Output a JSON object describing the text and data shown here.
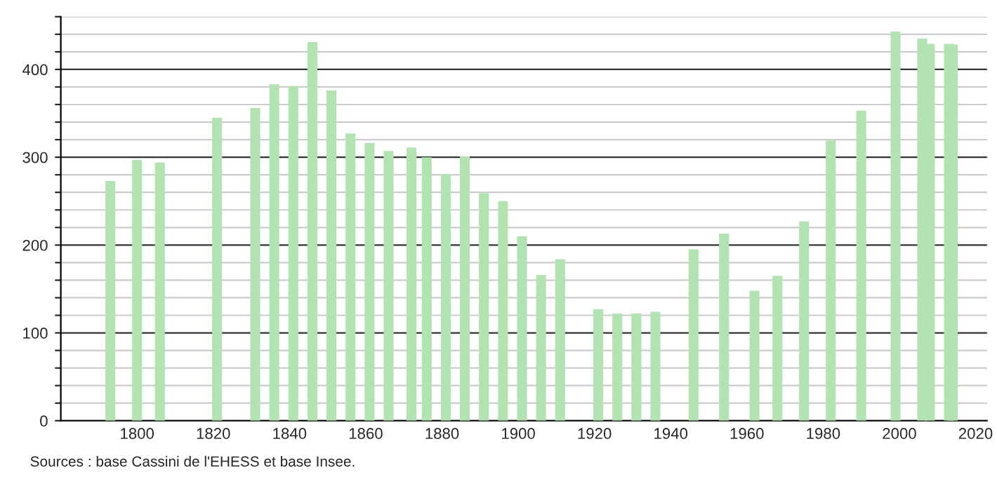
{
  "chart_data": {
    "type": "bar",
    "x": [
      1793,
      1800,
      1806,
      1821,
      1831,
      1836,
      1841,
      1846,
      1851,
      1856,
      1861,
      1866,
      1872,
      1876,
      1881,
      1886,
      1891,
      1896,
      1901,
      1906,
      1911,
      1921,
      1926,
      1931,
      1936,
      1946,
      1954,
      1962,
      1968,
      1975,
      1982,
      1990,
      1999,
      2006,
      2008,
      2013,
      2014
    ],
    "values": [
      273,
      297,
      294,
      345,
      356,
      383,
      381,
      431,
      376,
      327,
      316,
      307,
      311,
      300,
      281,
      301,
      259,
      250,
      210,
      166,
      184,
      127,
      122,
      122,
      124,
      195,
      213,
      148,
      165,
      227,
      319,
      353,
      443,
      435,
      429,
      429,
      428
    ],
    "color": "#b3e3b3",
    "xlim": [
      1780,
      2023
    ],
    "xticks": [
      1800,
      1820,
      1840,
      1860,
      1880,
      1900,
      1920,
      1940,
      1960,
      1980,
      2000,
      2020
    ],
    "ylim": [
      0,
      460
    ],
    "yticks": [
      0,
      {
        "value": 20,
        "label": null
      },
      {
        "value": 40,
        "label": null
      },
      {
        "value": 60,
        "label": null
      },
      {
        "value": 80,
        "label": null
      },
      100,
      {
        "value": 120,
        "label": null
      },
      {
        "value": 140,
        "label": null
      },
      {
        "value": 160,
        "label": null
      },
      {
        "value": 180,
        "label": null
      },
      200,
      {
        "value": 220,
        "label": null
      },
      {
        "value": 240,
        "label": null
      },
      {
        "value": 260,
        "label": null
      },
      {
        "value": 280,
        "label": null
      },
      300,
      {
        "value": 320,
        "label": null
      },
      {
        "value": 340,
        "label": null
      },
      {
        "value": 360,
        "label": null
      },
      {
        "value": 380,
        "label": null
      },
      400,
      {
        "value": 420,
        "label": null
      },
      {
        "value": 440,
        "label": null
      },
      {
        "value": 460,
        "label": null
      }
    ],
    "grid": "y",
    "annotations": [
      "Sources : base Cassini de l'EHESS et base Insee."
    ]
  }
}
